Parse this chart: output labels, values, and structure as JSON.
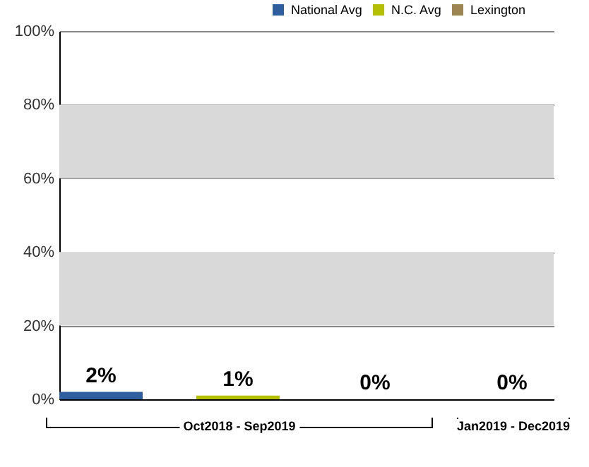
{
  "chart_data": {
    "type": "bar",
    "categories": [
      null,
      null,
      null,
      null
    ],
    "series": [
      {
        "name": "National Avg",
        "color": "#2e5e9e",
        "values": [
          2,
          null,
          null,
          null
        ]
      },
      {
        "name": "N.C. Avg",
        "color": "#b3bf00",
        "values": [
          null,
          1,
          null,
          null
        ]
      },
      {
        "name": "Lexington",
        "color": "#9c8550",
        "values": [
          null,
          null,
          0,
          0
        ]
      }
    ],
    "value_labels": [
      "2%",
      "1%",
      "0%",
      "0%"
    ],
    "ylim": [
      0,
      100
    ],
    "yticks": [
      {
        "value": 0,
        "label": "0%"
      },
      {
        "value": 20,
        "label": "20%"
      },
      {
        "value": 40,
        "label": "40%"
      },
      {
        "value": 60,
        "label": "60%"
      },
      {
        "value": 80,
        "label": "80%"
      },
      {
        "value": 100,
        "label": "100%"
      }
    ],
    "bands": [
      {
        "axis": "y",
        "from": 20,
        "to": 40,
        "color": "#d9d9d9"
      },
      {
        "axis": "y",
        "from": 60,
        "to": 80,
        "color": "#d9d9d9"
      }
    ],
    "grid": "y",
    "legend": "top right",
    "annotations": [
      "Oct2018 - Sep2019",
      "Jan2019 - Dec2019"
    ]
  }
}
